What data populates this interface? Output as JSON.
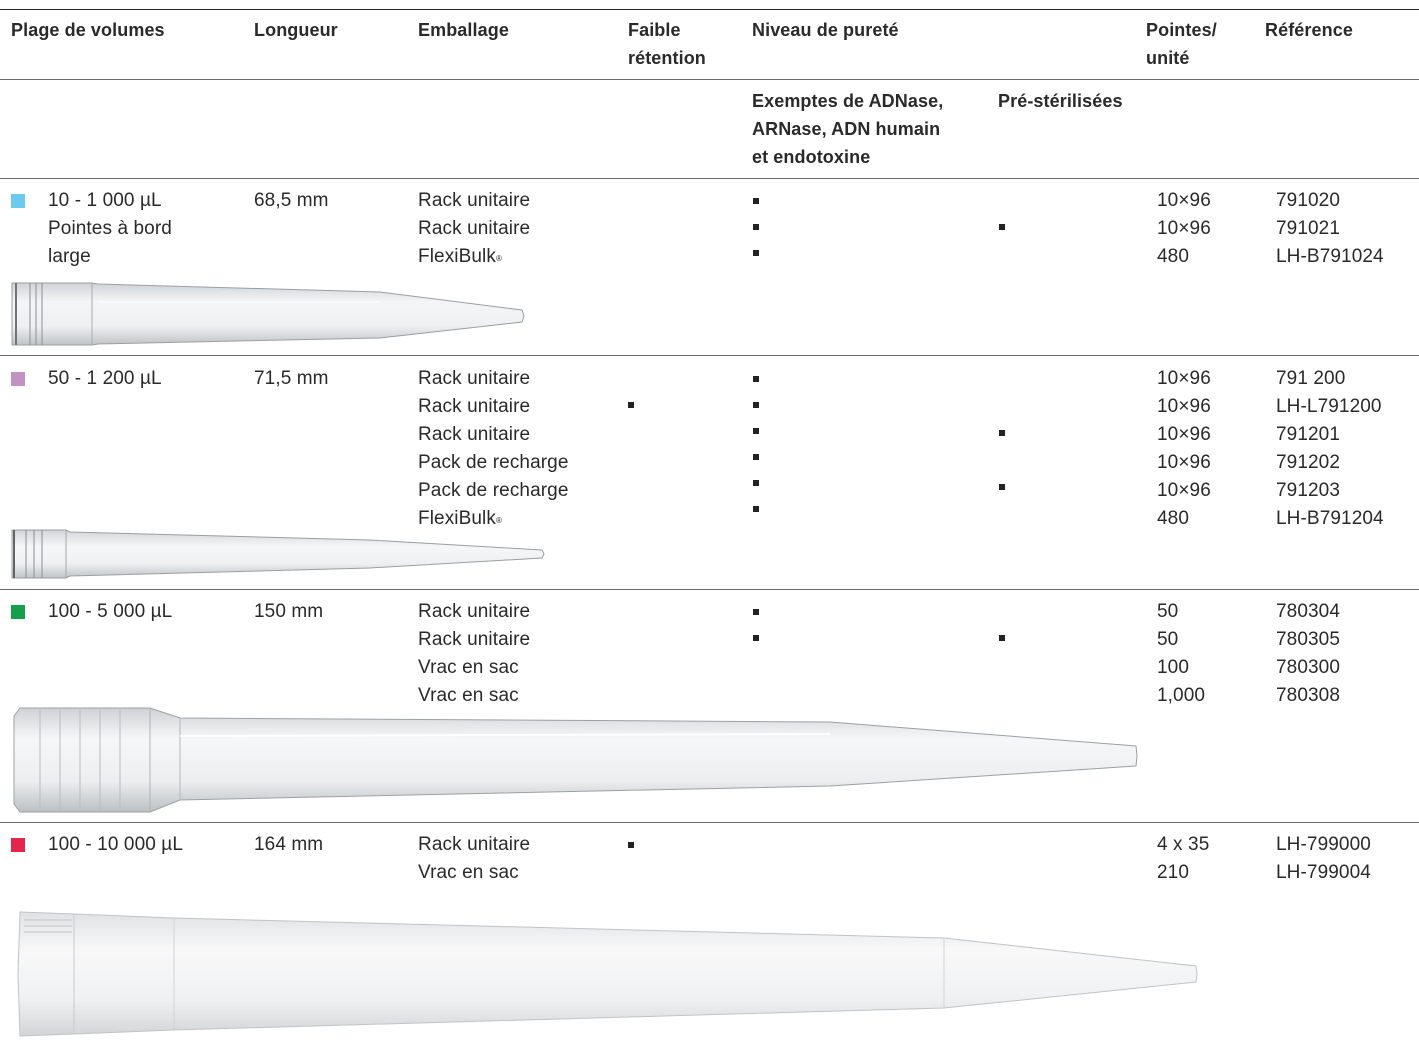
{
  "headers": {
    "volume": "Plage de volumes",
    "length": "Longueur",
    "packaging": "Emballage",
    "low_retention": [
      "Faible",
      "rétention"
    ],
    "purity": "Niveau de pureté",
    "tips_per_unit": [
      "Pointes/",
      "unité"
    ],
    "reference": "Référence",
    "purity_free": [
      "Exemptes de ADNase,",
      "ARNase, ADN humain",
      "et endotoxine"
    ],
    "purity_sterile": "Pré-stérilisées"
  },
  "colors": {
    "row1": "#6cc9ef",
    "row2": "#c392c4",
    "row3": "#14a04b",
    "row4": "#e4254c"
  },
  "rows": [
    {
      "volume": [
        "10 - 1 000 µL",
        "Pointes à bord",
        "large"
      ],
      "length": "68,5 mm",
      "packaging": [
        "Rack unitaire",
        "Rack unitaire",
        "FlexiBulk"
      ],
      "qty": [
        "10×96",
        "10×96",
        "480"
      ],
      "refs": [
        "791020",
        "791021",
        "LH-B791024"
      ]
    },
    {
      "volume": [
        "50 - 1 200 µL"
      ],
      "length": "71,5 mm",
      "packaging": [
        "Rack unitaire",
        "Rack unitaire",
        "Rack unitaire",
        "Pack de recharge",
        "Pack de recharge",
        "FlexiBulk"
      ],
      "qty": [
        "10×96",
        "10×96",
        "10×96",
        "10×96",
        "10×96",
        "480"
      ],
      "refs": [
        "791 200",
        "LH-L791200",
        "791201",
        "791202",
        "791203",
        "LH-B791204"
      ]
    },
    {
      "volume": [
        "100 - 5 000 µL"
      ],
      "length": "150 mm",
      "packaging": [
        "Rack unitaire",
        "Rack unitaire",
        "Vrac en sac",
        "Vrac en sac"
      ],
      "qty": [
        "50",
        "50",
        "100",
        "1,000"
      ],
      "refs": [
        "780304",
        "780305",
        "780300",
        "780308"
      ]
    },
    {
      "volume": [
        "100 - 10 000 µL"
      ],
      "length": "164 mm",
      "packaging": [
        "Rack unitaire",
        "Vrac en sac"
      ],
      "qty": [
        "4 x 35",
        "210"
      ],
      "refs": [
        "LH-799000",
        "LH-799004"
      ]
    }
  ]
}
